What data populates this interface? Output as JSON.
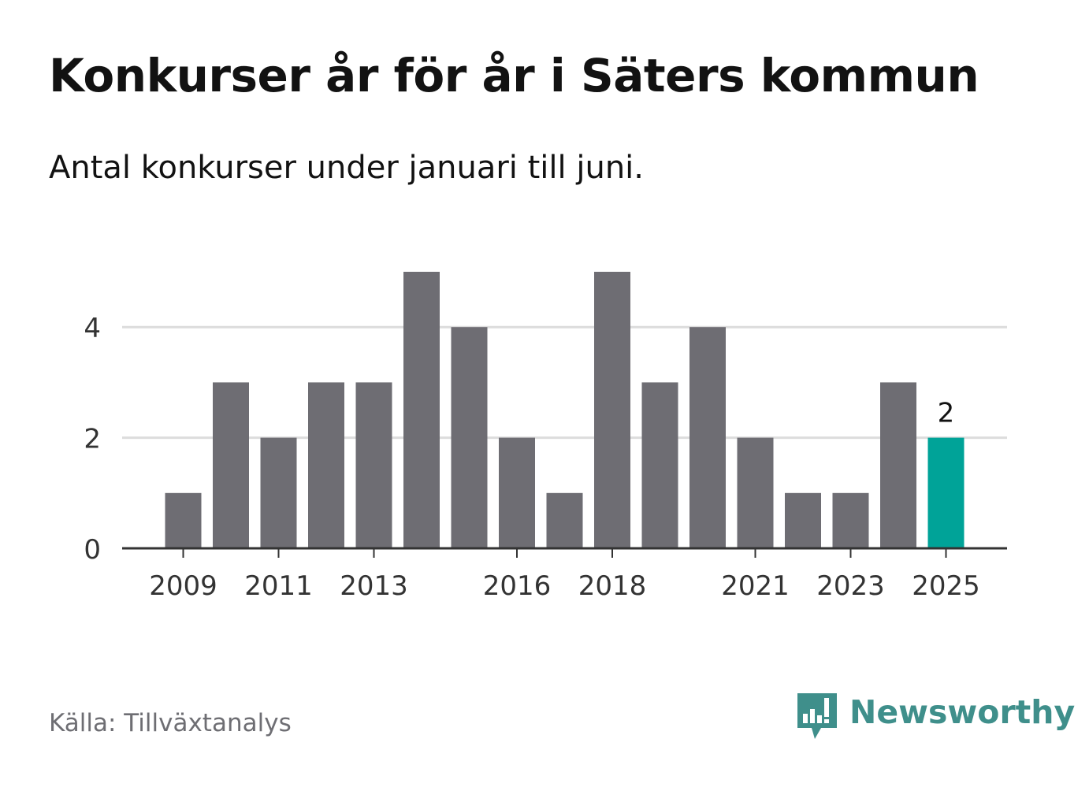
{
  "title": "Konkurser år för år i Säters kommun",
  "subtitle": "Antal konkurser under januari till juni.",
  "source": "Källa: Tillväxtanalys",
  "brand": "Newsworthy",
  "colors": {
    "bar": "#6e6d73",
    "highlight": "#00a398",
    "grid": "#dcdcdc",
    "axis": "#333333",
    "brand": "#3f8f8b"
  },
  "chart_data": {
    "type": "bar",
    "title": "Konkurser år för år i Säters kommun",
    "subtitle": "Antal konkurser under januari till juni.",
    "xlabel": "",
    "ylabel": "",
    "categories": [
      "2009",
      "2010",
      "2011",
      "2012",
      "2013",
      "2014",
      "2015",
      "2016",
      "2017",
      "2018",
      "2019",
      "2020",
      "2021",
      "2022",
      "2023",
      "2024",
      "2025"
    ],
    "values": [
      1,
      3,
      2,
      3,
      3,
      5,
      4,
      2,
      1,
      5,
      3,
      4,
      2,
      1,
      1,
      3,
      2
    ],
    "ylim": [
      0,
      5
    ],
    "yticks": [
      "0",
      "2",
      "4"
    ],
    "xtick_labels": [
      "2009",
      "2011",
      "2013",
      "2016",
      "2018",
      "2021",
      "2023",
      "2025"
    ],
    "highlight": {
      "category": "2025",
      "label": "2"
    },
    "grid": true
  }
}
